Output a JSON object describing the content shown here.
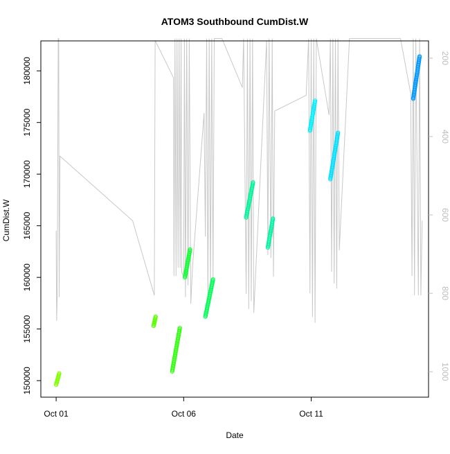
{
  "chart_data": {
    "type": "scatter",
    "title": "ATOM3 Southbound CumDist.W",
    "xlabel": "Date",
    "ylabel": "CumDist.W",
    "x_unit": "days after Oct 01 00:00",
    "xlim": [
      -0.6,
      14.6
    ],
    "ylim": [
      148400,
      182900
    ],
    "right_ylim": [
      1065,
      156
    ],
    "x_ticks": [
      {
        "value": 0,
        "label": "Oct 01"
      },
      {
        "value": 5,
        "label": "Oct 06"
      },
      {
        "value": 10,
        "label": "Oct 11"
      }
    ],
    "y_ticks": [
      {
        "value": 150000,
        "label": "150000"
      },
      {
        "value": 155000,
        "label": "155000"
      },
      {
        "value": 160000,
        "label": "160000"
      },
      {
        "value": 165000,
        "label": "165000"
      },
      {
        "value": 170000,
        "label": "170000"
      },
      {
        "value": 175000,
        "label": "175000"
      },
      {
        "value": 180000,
        "label": "180000"
      }
    ],
    "right_y_ticks": [
      {
        "value": 200,
        "label": "200"
      },
      {
        "value": 400,
        "label": "400"
      },
      {
        "value": 600,
        "label": "600"
      },
      {
        "value": 800,
        "label": "800"
      },
      {
        "value": 1000,
        "label": "1000"
      }
    ],
    "grid": false,
    "series": [
      {
        "color": "#7FFF00",
        "x0": 0.0,
        "y0": 149600,
        "x1": 0.12,
        "y1": 150700
      },
      {
        "color": "#55FF00",
        "x0": 3.82,
        "y0": 155300,
        "x1": 3.9,
        "y1": 156200
      },
      {
        "color": "#33FF11",
        "x0": 4.55,
        "y0": 150900,
        "x1": 4.85,
        "y1": 155100
      },
      {
        "color": "#11FF33",
        "x0": 5.05,
        "y0": 160000,
        "x1": 5.25,
        "y1": 162700
      },
      {
        "color": "#00FF55",
        "x0": 5.85,
        "y0": 156200,
        "x1": 6.15,
        "y1": 159800
      },
      {
        "color": "#00F59A",
        "x0": 7.45,
        "y0": 165800,
        "x1": 7.72,
        "y1": 169200
      },
      {
        "color": "#00F5A0",
        "x0": 8.3,
        "y0": 162900,
        "x1": 8.5,
        "y1": 165700
      },
      {
        "color": "#00F0FF",
        "x0": 9.95,
        "y0": 174200,
        "x1": 10.15,
        "y1": 177100
      },
      {
        "color": "#00E0FF",
        "x0": 10.75,
        "y0": 169500,
        "x1": 11.05,
        "y1": 174000
      },
      {
        "color": "#0099FF",
        "x0": 14.0,
        "y0": 177300,
        "x1": 14.25,
        "y1": 181400
      }
    ],
    "trace": {
      "color": "#c8c8c8",
      "axis": "right",
      "points": [
        [
          0,
          640
        ],
        [
          0.02,
          870
        ],
        [
          0.04,
          812
        ],
        [
          0.06,
          520
        ],
        [
          0.08,
          150
        ],
        [
          0.1,
          150
        ],
        [
          0.12,
          810
        ],
        [
          0.15,
          450
        ],
        [
          3,
          615
        ],
        [
          3.85,
          805
        ],
        [
          3.88,
          155
        ],
        [
          4.6,
          250
        ],
        [
          4.62,
          756
        ],
        [
          4.66,
          150
        ],
        [
          4.7,
          756
        ],
        [
          4.74,
          150
        ],
        [
          4.78,
          735
        ],
        [
          4.82,
          150
        ],
        [
          4.86,
          735
        ],
        [
          4.9,
          150
        ],
        [
          4.92,
          745
        ],
        [
          5.0,
          760
        ],
        [
          5.03,
          150
        ],
        [
          5.07,
          810
        ],
        [
          5.12,
          150
        ],
        [
          5.17,
          780
        ],
        [
          5.22,
          150
        ],
        [
          5.28,
          827
        ],
        [
          5.35,
          730
        ],
        [
          5.8,
          340
        ],
        [
          5.85,
          655
        ],
        [
          5.9,
          150
        ],
        [
          5.95,
          820
        ],
        [
          6.0,
          150
        ],
        [
          6.05,
          800
        ],
        [
          6.1,
          150
        ],
        [
          6.15,
          760
        ],
        [
          6.2,
          150
        ],
        [
          6.5,
          150
        ],
        [
          7.3,
          275
        ],
        [
          7.35,
          150
        ],
        [
          7.45,
          802
        ],
        [
          7.5,
          150
        ],
        [
          7.55,
          840
        ],
        [
          7.6,
          150
        ],
        [
          7.65,
          820
        ],
        [
          7.7,
          150
        ],
        [
          7.75,
          850
        ],
        [
          8.25,
          155
        ],
        [
          8.3,
          702
        ],
        [
          8.35,
          150
        ],
        [
          8.42,
          710
        ],
        [
          8.47,
          150
        ],
        [
          8.52,
          758
        ],
        [
          8.57,
          335
        ],
        [
          9.8,
          295
        ],
        [
          9.9,
          150
        ],
        [
          9.95,
          800
        ],
        [
          10.0,
          150
        ],
        [
          10.05,
          860
        ],
        [
          10.1,
          150
        ],
        [
          10.15,
          875
        ],
        [
          10.2,
          150
        ],
        [
          10.7,
          345
        ],
        [
          10.75,
          150
        ],
        [
          10.8,
          745
        ],
        [
          10.85,
          150
        ],
        [
          10.9,
          775
        ],
        [
          10.95,
          150
        ],
        [
          11.0,
          788
        ],
        [
          11.05,
          150
        ],
        [
          11.1,
          690
        ],
        [
          11.5,
          150
        ],
        [
          13.5,
          150
        ],
        [
          13.9,
          290
        ],
        [
          13.95,
          756
        ],
        [
          14.0,
          150
        ],
        [
          14.05,
          805
        ],
        [
          14.1,
          150
        ],
        [
          14.2,
          805
        ],
        [
          14.25,
          150
        ],
        [
          14.3,
          805
        ],
        [
          14.35,
          615
        ]
      ]
    }
  }
}
